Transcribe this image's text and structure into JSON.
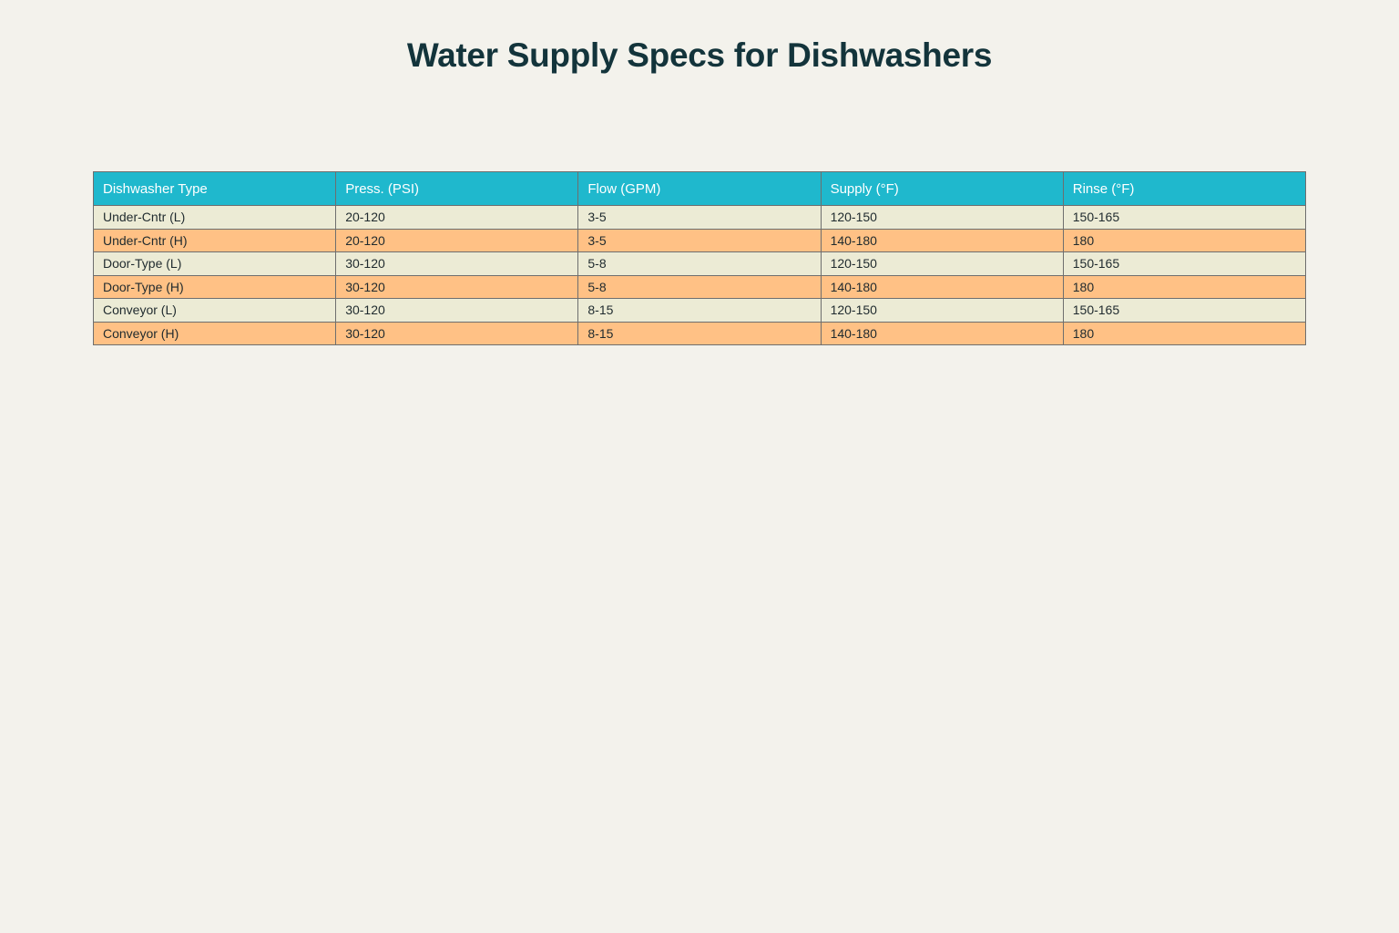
{
  "title": "Water Supply Specs for Dishwashers",
  "colors": {
    "background": "#f3f2ec",
    "header_fill": "#1fb8cd",
    "row_fill_odd": "#ecebd5",
    "row_fill_even": "#ffc185",
    "title_color": "#13343b"
  },
  "chart_data": {
    "type": "table",
    "title": "Water Supply Specs for Dishwashers",
    "columns": [
      "Dishwasher Type",
      "Press. (PSI)",
      "Flow (GPM)",
      "Supply (°F)",
      "Rinse (°F)"
    ],
    "rows": [
      [
        "Under-Cntr (L)",
        "20-120",
        "3-5",
        "120-150",
        "150-165"
      ],
      [
        "Under-Cntr (H)",
        "20-120",
        "3-5",
        "140-180",
        "180"
      ],
      [
        "Door-Type (L)",
        "30-120",
        "5-8",
        "120-150",
        "150-165"
      ],
      [
        "Door-Type (H)",
        "30-120",
        "5-8",
        "140-180",
        "180"
      ],
      [
        "Conveyor (L)",
        "30-120",
        "8-15",
        "120-150",
        "150-165"
      ],
      [
        "Conveyor (H)",
        "30-120",
        "8-15",
        "140-180",
        "180"
      ]
    ]
  }
}
